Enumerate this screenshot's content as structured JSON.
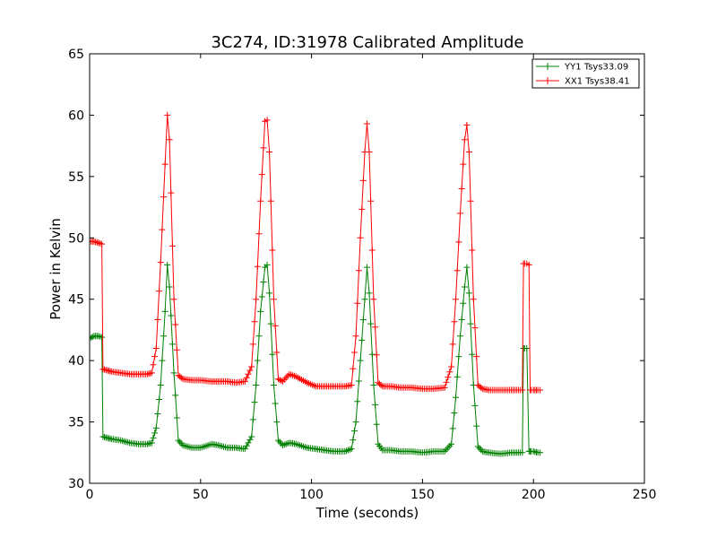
{
  "chart_data": {
    "type": "line",
    "title": "3C274, ID:31978 Calibrated Amplitude",
    "xlabel": "Time (seconds)",
    "ylabel": "Power in Kelvin",
    "xlim": [
      0,
      250
    ],
    "ylim": [
      30,
      65
    ],
    "xticks": [
      "0",
      "50",
      "100",
      "150",
      "200",
      "250"
    ],
    "yticks": [
      "30",
      "35",
      "40",
      "45",
      "50",
      "55",
      "60",
      "65"
    ],
    "grid": false,
    "legend_position": "top-right",
    "series": [
      {
        "name": "YY1 Tsys33.09",
        "color": "#008000",
        "marker": "plus",
        "x": [
          0,
          2,
          4,
          5.5,
          6,
          8,
          10,
          14,
          18,
          22,
          26,
          28,
          30,
          32,
          34,
          35,
          36,
          38,
          40,
          42,
          46,
          50,
          55,
          58,
          62,
          66,
          70,
          73,
          75,
          77,
          79,
          80,
          81,
          83,
          85,
          87,
          90,
          93,
          98,
          102,
          106,
          110,
          115,
          118,
          120,
          122,
          124,
          125,
          126,
          128,
          130,
          132,
          136,
          140,
          145,
          150,
          155,
          160,
          163,
          165,
          167,
          169,
          170,
          171,
          173,
          175,
          177,
          180,
          185,
          190,
          194,
          195,
          195.5,
          196,
          197,
          198,
          198.5,
          199,
          200,
          202,
          203
        ],
        "y": [
          41.8,
          42.0,
          42.0,
          41.9,
          33.8,
          33.7,
          33.6,
          33.5,
          33.3,
          33.2,
          33.2,
          33.3,
          34.5,
          38,
          44,
          47.8,
          46,
          39,
          33.5,
          33.1,
          32.9,
          32.9,
          33.2,
          33.1,
          32.9,
          32.9,
          32.8,
          33.8,
          38,
          44,
          47.6,
          47.8,
          45.5,
          38,
          33.5,
          33.1,
          33.3,
          33.2,
          32.9,
          32.8,
          32.7,
          32.6,
          32.6,
          32.8,
          35,
          40,
          45,
          47.6,
          45.5,
          38,
          33.2,
          32.7,
          32.7,
          32.6,
          32.6,
          32.5,
          32.6,
          32.6,
          33.2,
          37,
          42,
          46,
          47.6,
          45.5,
          38,
          33,
          32.6,
          32.5,
          32.4,
          32.5,
          32.5,
          32.5,
          41.0,
          41.0,
          41.0,
          32.6,
          32.6,
          32.6,
          32.6,
          32.5,
          32.5
        ]
      },
      {
        "name": "XX1 Tsys38.41",
        "color": "#ff0000",
        "marker": "plus",
        "x": [
          0,
          2,
          4,
          5.5,
          6,
          8,
          10,
          14,
          18,
          22,
          26,
          28,
          30,
          32,
          34,
          35,
          36,
          38,
          40,
          42,
          46,
          50,
          55,
          58,
          62,
          66,
          70,
          73,
          75,
          77,
          79,
          80,
          81,
          83,
          85,
          87,
          90,
          93,
          98,
          102,
          106,
          110,
          115,
          118,
          120,
          122,
          124,
          125,
          126,
          128,
          130,
          132,
          136,
          140,
          145,
          150,
          155,
          160,
          163,
          165,
          167,
          169,
          170,
          171,
          173,
          175,
          177,
          180,
          185,
          190,
          194,
          195,
          195.5,
          196,
          197,
          198,
          198.5,
          199,
          200,
          202,
          203
        ],
        "y": [
          49.7,
          49.7,
          49.6,
          49.5,
          39.3,
          39.2,
          39.1,
          39.0,
          38.9,
          38.9,
          38.9,
          39.0,
          41,
          48,
          56,
          60.0,
          58,
          45,
          38.8,
          38.5,
          38.4,
          38.4,
          38.3,
          38.3,
          38.3,
          38.2,
          38.3,
          39.5,
          45,
          53,
          59.5,
          59.6,
          57,
          45,
          38.5,
          38.3,
          38.9,
          38.7,
          38.2,
          37.9,
          37.9,
          37.9,
          37.9,
          38.0,
          42,
          50,
          57,
          59.3,
          57,
          45,
          38.2,
          37.9,
          37.9,
          37.8,
          37.8,
          37.7,
          37.7,
          37.8,
          39.5,
          45,
          52,
          58,
          59.2,
          57,
          45,
          38,
          37.7,
          37.6,
          37.6,
          37.6,
          37.6,
          37.6,
          47.9,
          47.9,
          47.9,
          47.8,
          37.6,
          37.6,
          37.6,
          37.6,
          37.6
        ]
      }
    ]
  }
}
